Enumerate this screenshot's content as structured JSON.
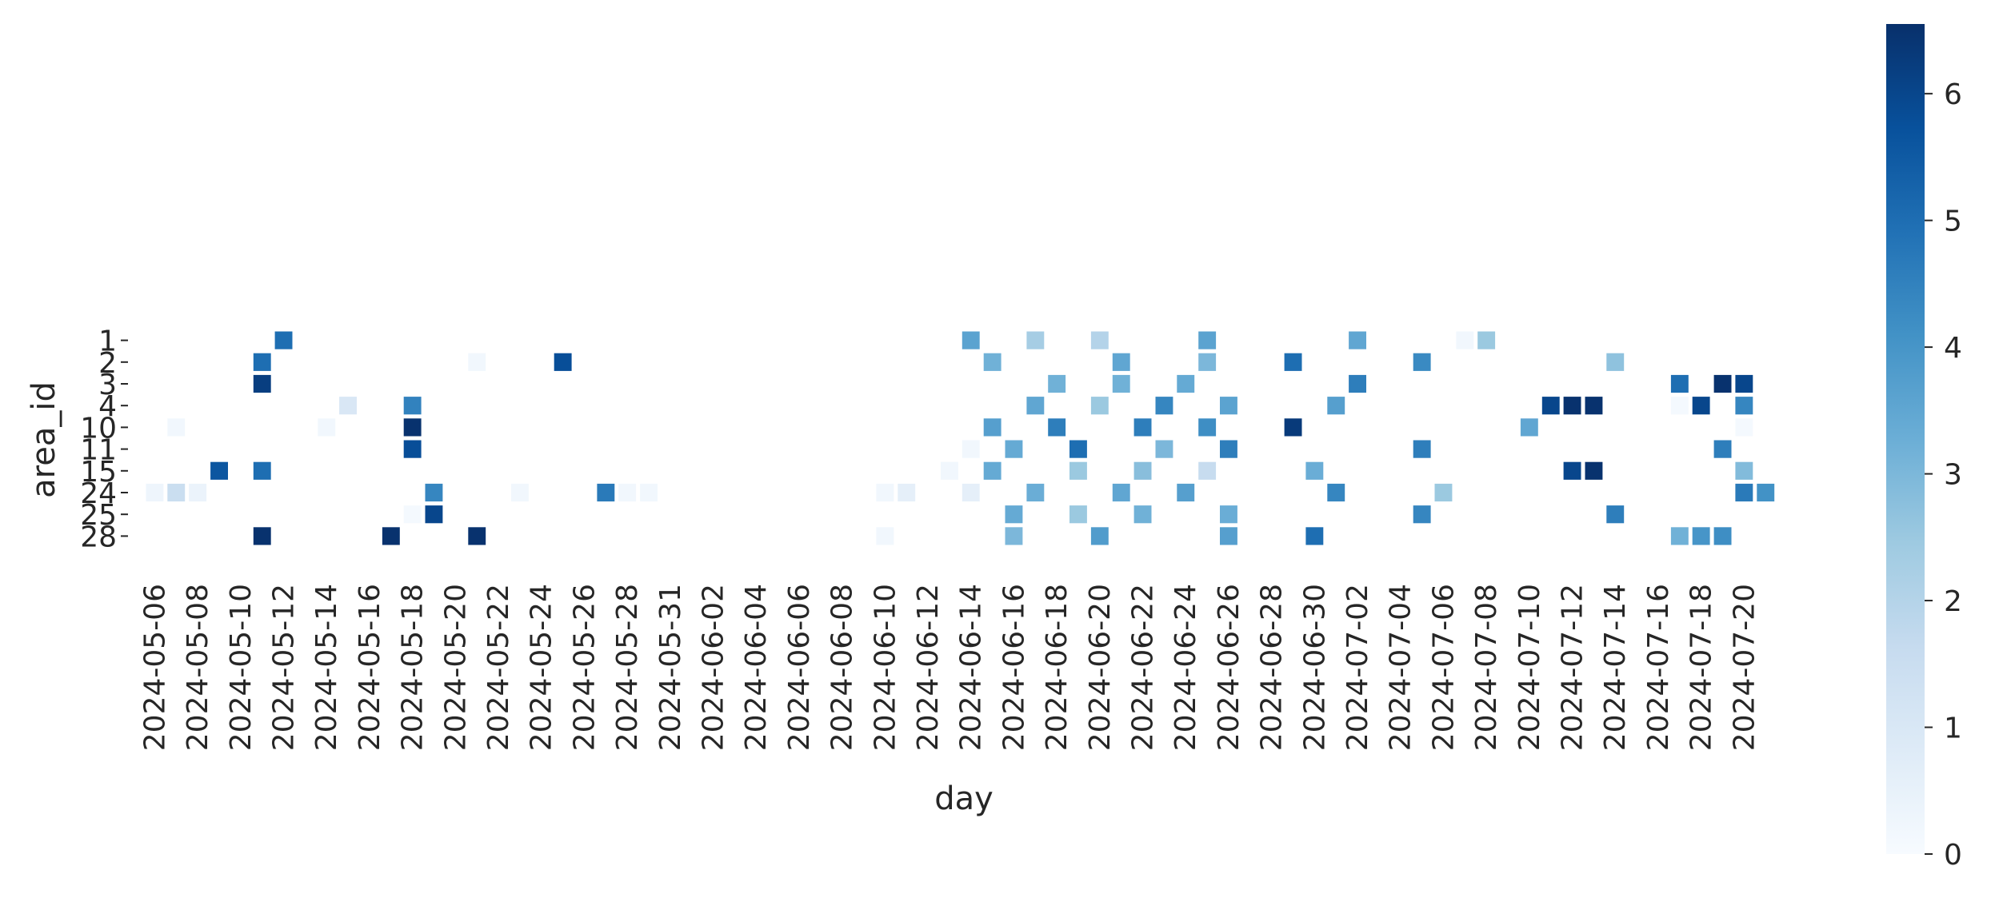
{
  "chart_data": {
    "type": "heatmap",
    "title": "",
    "xlabel": "day",
    "ylabel": "area_id",
    "x": [
      "2024-05-06",
      "2024-05-07",
      "2024-05-08",
      "2024-05-09",
      "2024-05-10",
      "2024-05-11",
      "2024-05-12",
      "2024-05-13",
      "2024-05-14",
      "2024-05-15",
      "2024-05-16",
      "2024-05-17",
      "2024-05-18",
      "2024-05-19",
      "2024-05-20",
      "2024-05-21",
      "2024-05-22",
      "2024-05-23",
      "2024-05-24",
      "2024-05-25",
      "2024-05-26",
      "2024-05-27",
      "2024-05-28",
      "2024-05-29",
      "2024-05-31",
      "2024-06-01",
      "2024-06-02",
      "2024-06-03",
      "2024-06-04",
      "2024-06-05",
      "2024-06-06",
      "2024-06-07",
      "2024-06-08",
      "2024-06-09",
      "2024-06-10",
      "2024-06-11",
      "2024-06-12",
      "2024-06-13",
      "2024-06-14",
      "2024-06-15",
      "2024-06-16",
      "2024-06-17",
      "2024-06-18",
      "2024-06-19",
      "2024-06-20",
      "2024-06-21",
      "2024-06-22",
      "2024-06-23",
      "2024-06-24",
      "2024-06-25",
      "2024-06-26",
      "2024-06-27",
      "2024-06-28",
      "2024-06-29",
      "2024-06-30",
      "2024-07-01",
      "2024-07-02",
      "2024-07-03",
      "2024-07-04",
      "2024-07-05",
      "2024-07-06",
      "2024-07-07",
      "2024-07-08",
      "2024-07-09",
      "2024-07-10",
      "2024-07-11",
      "2024-07-12",
      "2024-07-13",
      "2024-07-14",
      "2024-07-15",
      "2024-07-16",
      "2024-07-17",
      "2024-07-18",
      "2024-07-19",
      "2024-07-20",
      "2024-07-21"
    ],
    "x_tick_labels": [
      "2024-05-06",
      "2024-05-08",
      "2024-05-10",
      "2024-05-12",
      "2024-05-14",
      "2024-05-16",
      "2024-05-18",
      "2024-05-20",
      "2024-05-22",
      "2024-05-24",
      "2024-05-26",
      "2024-05-28",
      "2024-05-31",
      "2024-06-02",
      "2024-06-04",
      "2024-06-06",
      "2024-06-08",
      "2024-06-10",
      "2024-06-12",
      "2024-06-14",
      "2024-06-16",
      "2024-06-18",
      "2024-06-20",
      "2024-06-22",
      "2024-06-24",
      "2024-06-26",
      "2024-06-28",
      "2024-06-30",
      "2024-07-02",
      "2024-07-04",
      "2024-07-06",
      "2024-07-08",
      "2024-07-10",
      "2024-07-12",
      "2024-07-14",
      "2024-07-16",
      "2024-07-18",
      "2024-07-20"
    ],
    "y": [
      "1",
      "2",
      "3",
      "4",
      "10",
      "11",
      "15",
      "24",
      "25",
      "28"
    ],
    "cells": [
      {
        "area": "1",
        "day": "2024-05-12",
        "value": 5.0
      },
      {
        "area": "1",
        "day": "2024-06-14",
        "value": 3.6
      },
      {
        "area": "1",
        "day": "2024-06-17",
        "value": 2.3
      },
      {
        "area": "1",
        "day": "2024-06-20",
        "value": 2.0
      },
      {
        "area": "1",
        "day": "2024-06-25",
        "value": 3.6
      },
      {
        "area": "1",
        "day": "2024-07-02",
        "value": 3.5
      },
      {
        "area": "1",
        "day": "2024-07-07",
        "value": 0.2
      },
      {
        "area": "1",
        "day": "2024-07-08",
        "value": 2.5
      },
      {
        "area": "2",
        "day": "2024-05-11",
        "value": 5.0
      },
      {
        "area": "2",
        "day": "2024-05-21",
        "value": 0.2
      },
      {
        "area": "2",
        "day": "2024-05-25",
        "value": 5.8
      },
      {
        "area": "2",
        "day": "2024-06-15",
        "value": 3.2
      },
      {
        "area": "2",
        "day": "2024-06-21",
        "value": 3.5
      },
      {
        "area": "2",
        "day": "2024-06-25",
        "value": 3.0
      },
      {
        "area": "2",
        "day": "2024-06-29",
        "value": 5.0
      },
      {
        "area": "2",
        "day": "2024-07-05",
        "value": 4.3
      },
      {
        "area": "2",
        "day": "2024-07-14",
        "value": 2.7
      },
      {
        "area": "3",
        "day": "2024-05-11",
        "value": 6.2
      },
      {
        "area": "3",
        "day": "2024-06-18",
        "value": 3.2
      },
      {
        "area": "3",
        "day": "2024-06-21",
        "value": 3.2
      },
      {
        "area": "3",
        "day": "2024-06-24",
        "value": 3.4
      },
      {
        "area": "3",
        "day": "2024-07-02",
        "value": 4.6
      },
      {
        "area": "3",
        "day": "2024-07-17",
        "value": 5.0
      },
      {
        "area": "3",
        "day": "2024-07-19",
        "value": 6.5
      },
      {
        "area": "3",
        "day": "2024-07-20",
        "value": 6.0
      },
      {
        "area": "4",
        "day": "2024-05-15",
        "value": 1.0
      },
      {
        "area": "4",
        "day": "2024-05-18",
        "value": 4.5
      },
      {
        "area": "4",
        "day": "2024-06-17",
        "value": 3.5
      },
      {
        "area": "4",
        "day": "2024-06-20",
        "value": 2.5
      },
      {
        "area": "4",
        "day": "2024-06-23",
        "value": 4.4
      },
      {
        "area": "4",
        "day": "2024-06-26",
        "value": 3.6
      },
      {
        "area": "4",
        "day": "2024-07-01",
        "value": 3.7
      },
      {
        "area": "4",
        "day": "2024-07-11",
        "value": 6.0
      },
      {
        "area": "4",
        "day": "2024-07-12",
        "value": 6.5
      },
      {
        "area": "4",
        "day": "2024-07-13",
        "value": 6.5
      },
      {
        "area": "4",
        "day": "2024-07-17",
        "value": 0.1
      },
      {
        "area": "4",
        "day": "2024-07-18",
        "value": 6.0
      },
      {
        "area": "4",
        "day": "2024-07-20",
        "value": 4.4
      },
      {
        "area": "10",
        "day": "2024-05-07",
        "value": 0.2
      },
      {
        "area": "10",
        "day": "2024-05-14",
        "value": 0.2
      },
      {
        "area": "10",
        "day": "2024-05-18",
        "value": 6.5
      },
      {
        "area": "10",
        "day": "2024-06-15",
        "value": 3.7
      },
      {
        "area": "10",
        "day": "2024-06-18",
        "value": 4.6
      },
      {
        "area": "10",
        "day": "2024-06-22",
        "value": 4.6
      },
      {
        "area": "10",
        "day": "2024-06-25",
        "value": 4.2
      },
      {
        "area": "10",
        "day": "2024-06-29",
        "value": 6.3
      },
      {
        "area": "10",
        "day": "2024-07-10",
        "value": 3.5
      },
      {
        "area": "10",
        "day": "2024-07-20",
        "value": 0.1
      },
      {
        "area": "11",
        "day": "2024-05-18",
        "value": 5.8
      },
      {
        "area": "11",
        "day": "2024-06-14",
        "value": 0.2
      },
      {
        "area": "11",
        "day": "2024-06-16",
        "value": 3.4
      },
      {
        "area": "11",
        "day": "2024-06-19",
        "value": 5.0
      },
      {
        "area": "11",
        "day": "2024-06-23",
        "value": 3.0
      },
      {
        "area": "11",
        "day": "2024-06-26",
        "value": 4.6
      },
      {
        "area": "11",
        "day": "2024-07-05",
        "value": 4.6
      },
      {
        "area": "11",
        "day": "2024-07-19",
        "value": 4.6
      },
      {
        "area": "15",
        "day": "2024-05-09",
        "value": 5.6
      },
      {
        "area": "15",
        "day": "2024-05-11",
        "value": 5.0
      },
      {
        "area": "15",
        "day": "2024-06-13",
        "value": 0.2
      },
      {
        "area": "15",
        "day": "2024-06-15",
        "value": 3.4
      },
      {
        "area": "15",
        "day": "2024-06-19",
        "value": 2.5
      },
      {
        "area": "15",
        "day": "2024-06-22",
        "value": 2.8
      },
      {
        "area": "15",
        "day": "2024-06-25",
        "value": 1.6
      },
      {
        "area": "15",
        "day": "2024-06-30",
        "value": 3.3
      },
      {
        "area": "15",
        "day": "2024-07-12",
        "value": 6.0
      },
      {
        "area": "15",
        "day": "2024-07-13",
        "value": 6.5
      },
      {
        "area": "15",
        "day": "2024-07-20",
        "value": 2.9
      },
      {
        "area": "24",
        "day": "2024-05-06",
        "value": 0.3
      },
      {
        "area": "24",
        "day": "2024-05-07",
        "value": 1.5
      },
      {
        "area": "24",
        "day": "2024-05-08",
        "value": 0.4
      },
      {
        "area": "24",
        "day": "2024-05-19",
        "value": 4.4
      },
      {
        "area": "24",
        "day": "2024-05-23",
        "value": 0.2
      },
      {
        "area": "24",
        "day": "2024-05-27",
        "value": 4.7
      },
      {
        "area": "24",
        "day": "2024-05-28",
        "value": 0.2
      },
      {
        "area": "24",
        "day": "2024-05-29",
        "value": 0.2
      },
      {
        "area": "24",
        "day": "2024-06-10",
        "value": 0.2
      },
      {
        "area": "24",
        "day": "2024-06-11",
        "value": 0.6
      },
      {
        "area": "24",
        "day": "2024-06-14",
        "value": 0.6
      },
      {
        "area": "24",
        "day": "2024-06-17",
        "value": 3.3
      },
      {
        "area": "24",
        "day": "2024-06-21",
        "value": 3.5
      },
      {
        "area": "24",
        "day": "2024-06-24",
        "value": 3.7
      },
      {
        "area": "24",
        "day": "2024-07-01",
        "value": 4.4
      },
      {
        "area": "24",
        "day": "2024-07-06",
        "value": 2.5
      },
      {
        "area": "24",
        "day": "2024-07-20",
        "value": 4.7
      },
      {
        "area": "24",
        "day": "2024-07-21",
        "value": 4.1
      },
      {
        "area": "25",
        "day": "2024-05-18",
        "value": 0.1
      },
      {
        "area": "25",
        "day": "2024-05-19",
        "value": 6.0
      },
      {
        "area": "25",
        "day": "2024-06-16",
        "value": 3.4
      },
      {
        "area": "25",
        "day": "2024-06-19",
        "value": 2.5
      },
      {
        "area": "25",
        "day": "2024-06-22",
        "value": 3.2
      },
      {
        "area": "25",
        "day": "2024-06-26",
        "value": 3.3
      },
      {
        "area": "25",
        "day": "2024-07-05",
        "value": 4.4
      },
      {
        "area": "25",
        "day": "2024-07-14",
        "value": 4.6
      },
      {
        "area": "28",
        "day": "2024-05-11",
        "value": 6.5
      },
      {
        "area": "28",
        "day": "2024-05-17",
        "value": 6.5
      },
      {
        "area": "28",
        "day": "2024-05-21",
        "value": 6.5
      },
      {
        "area": "28",
        "day": "2024-06-10",
        "value": 0.2
      },
      {
        "area": "28",
        "day": "2024-06-16",
        "value": 3.0
      },
      {
        "area": "28",
        "day": "2024-06-20",
        "value": 3.8
      },
      {
        "area": "28",
        "day": "2024-06-26",
        "value": 3.7
      },
      {
        "area": "28",
        "day": "2024-06-30",
        "value": 5.0
      },
      {
        "area": "28",
        "day": "2024-07-17",
        "value": 3.2
      },
      {
        "area": "28",
        "day": "2024-07-18",
        "value": 4.0
      },
      {
        "area": "28",
        "day": "2024-07-19",
        "value": 4.2
      }
    ],
    "colorbar": {
      "colormap": "Blues",
      "vmin": 0,
      "vmax": 6.55,
      "ticks": [
        "0",
        "1",
        "2",
        "3",
        "4",
        "5",
        "6"
      ]
    },
    "grid": false,
    "legend": "colorbar-right"
  }
}
